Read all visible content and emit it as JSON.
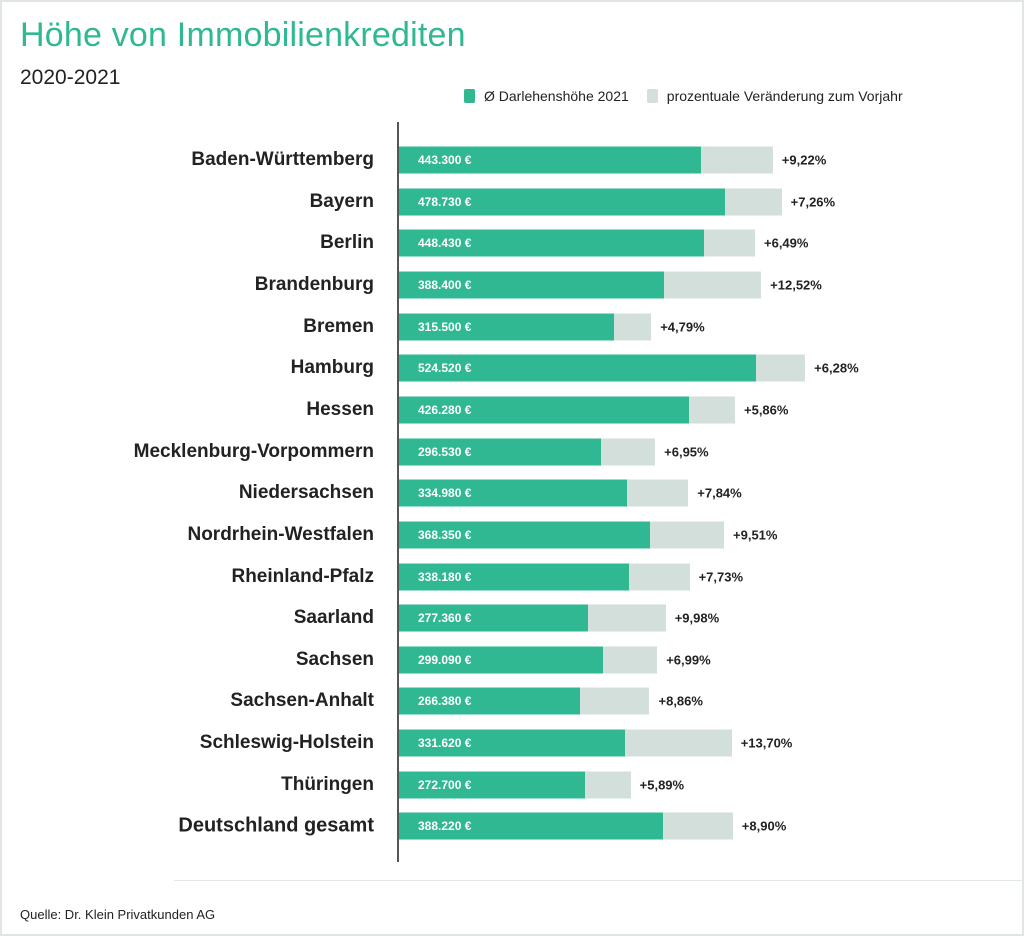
{
  "title": "Höhe von Immobilienkrediten",
  "subtitle": "2020-2021",
  "source": "Quelle: Dr. Klein Privatkunden AG",
  "colors": {
    "primary": "#2fb892",
    "secondary": "#d3dfdb",
    "title": "#2fb892"
  },
  "chart_data": {
    "type": "bar",
    "orientation": "horizontal",
    "stacked": true,
    "legend_position": "top-right",
    "legend": [
      "Ø Darlehenshöhe 2021",
      "prozentuale Veränderung zum Vorjahr"
    ],
    "categories": [
      "Baden-Württemberg",
      "Bayern",
      "Berlin",
      "Brandenburg",
      "Bremen",
      "Hamburg",
      "Hessen",
      "Mecklenburg-Vorpommern",
      "Niedersachsen",
      "Nordrhein-Westfalen",
      "Rheinland-Pfalz",
      "Saarland",
      "Sachsen",
      "Sachsen-Anhalt",
      "Schleswig-Holstein",
      "Thüringen",
      "Deutschland gesamt"
    ],
    "series": [
      {
        "name": "Ø Darlehenshöhe 2021",
        "values": [
          443300,
          478730,
          448430,
          388400,
          315500,
          524520,
          426280,
          296530,
          334980,
          368350,
          338180,
          277360,
          299090,
          266380,
          331620,
          272700,
          388220
        ],
        "labels": [
          "443.300 €",
          "478.730 €",
          "448.430 €",
          "388.400 €",
          "315.500 €",
          "524.520 €",
          "426.280 €",
          "296.530 €",
          "334.980 €",
          "368.350 €",
          "338.180 €",
          "277.360 €",
          "299.090 €",
          "266.380 €",
          "331.620 €",
          "272.700 €",
          "388.220 €"
        ]
      },
      {
        "name": "prozentuale Veränderung zum Vorjahr",
        "values": [
          9.22,
          7.26,
          6.49,
          12.52,
          4.79,
          6.28,
          5.86,
          6.95,
          7.84,
          9.51,
          7.73,
          9.98,
          6.99,
          8.86,
          13.7,
          5.89,
          8.9
        ],
        "labels": [
          "+9,22%",
          "+7,26%",
          "+6,49%",
          "+12,52%",
          "+4,79%",
          "+6,28%",
          "+5,86%",
          "+6,95%",
          "+7,84%",
          "+9,51%",
          "+7,73%",
          "+9,98%",
          "+6,99%",
          "+8,86%",
          "+13,70%",
          "+5,89%",
          "+8,90%"
        ]
      }
    ],
    "bold_category": "Deutschland gesamt",
    "grid": false
  }
}
